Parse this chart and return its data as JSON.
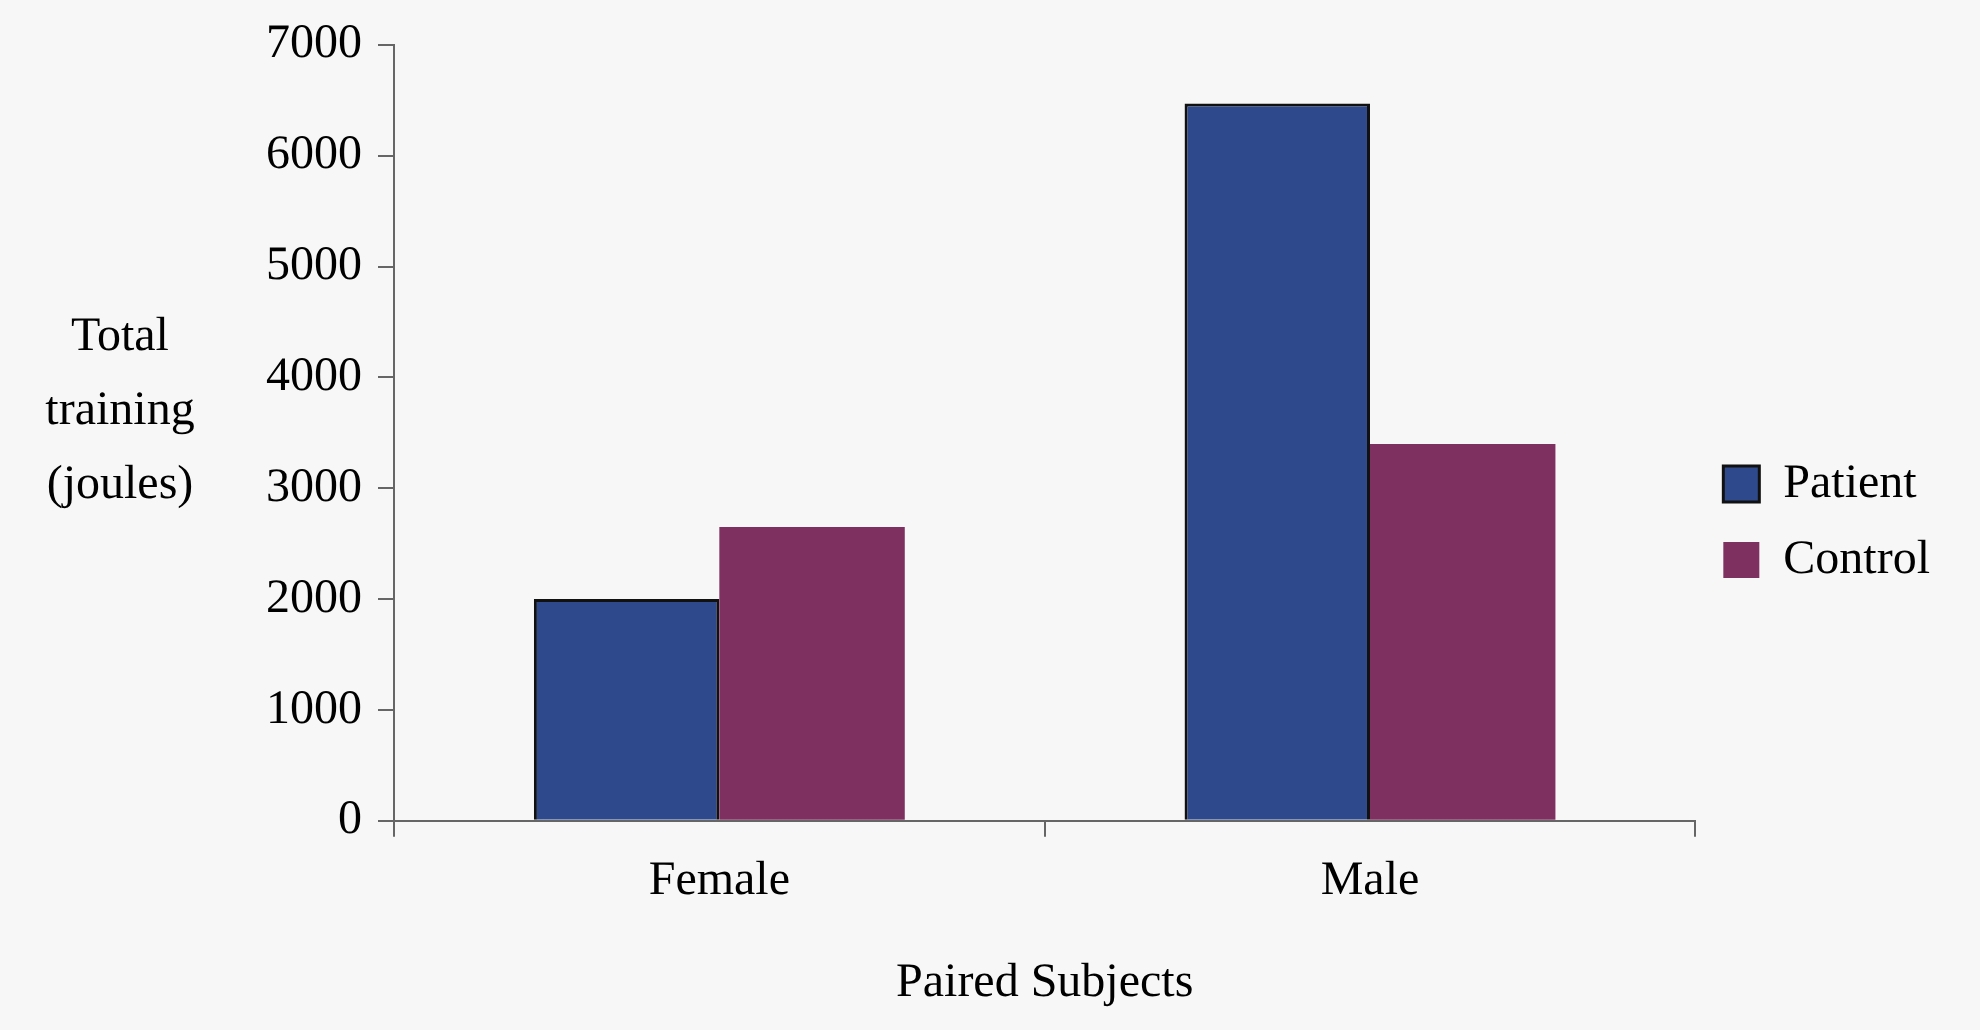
{
  "chart_data": {
    "type": "bar",
    "xlabel": "Paired Subjects",
    "ylabel": "Total training (joules)",
    "categories": [
      "Female",
      "Male"
    ],
    "series": [
      {
        "name": "Patient",
        "color": "#2e4a8c",
        "values": [
          2000,
          6470
        ]
      },
      {
        "name": "Control",
        "color": "#7e3060",
        "values": [
          2650,
          3400
        ]
      }
    ],
    "ylim": [
      0,
      7000
    ],
    "yticks": [
      0,
      1000,
      2000,
      3000,
      4000,
      5000,
      6000,
      7000
    ],
    "grid": false,
    "legend": "right"
  }
}
